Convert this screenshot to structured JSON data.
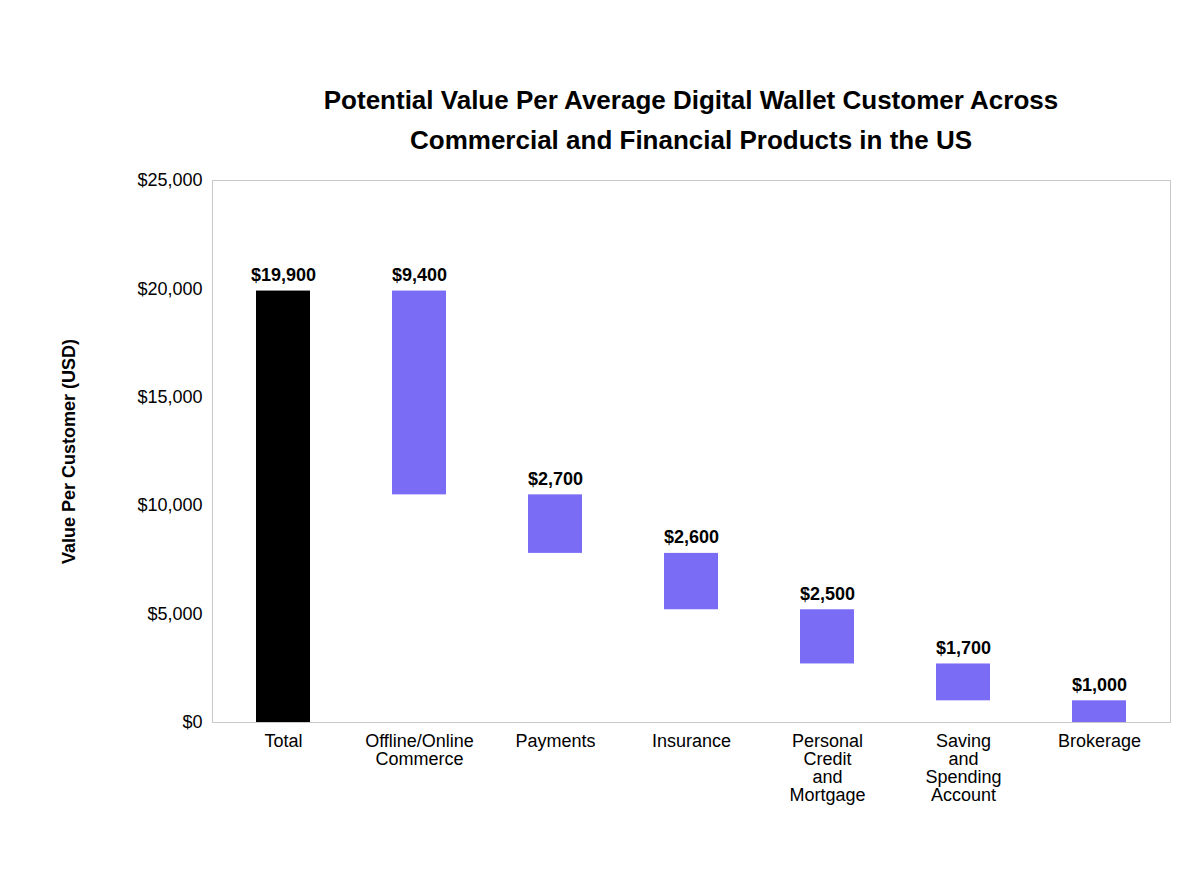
{
  "chart_data": {
    "type": "waterfall",
    "title": "Potential Value Per Average Digital Wallet Customer Across Commercial and Financial Products in the US",
    "y_label": "Value Per Customer (USD)",
    "categories": [
      "Total",
      "Offline/Online Commerce",
      "Payments",
      "Insurance",
      "Personal Credit and Mortgage",
      "Saving and Spending Account",
      "Brokerage"
    ],
    "values": [
      19900,
      9400,
      2700,
      2600,
      2500,
      1700,
      1000
    ],
    "value_labels": [
      "$19,900",
      "$9,400",
      "$2,700",
      "$2,600",
      "$2,500",
      "$1,700",
      "$1,000"
    ],
    "colors": [
      "#000000",
      "#7b6cf6",
      "#7b6cf6",
      "#7b6cf6",
      "#7b6cf6",
      "#7b6cf6",
      "#7b6cf6"
    ],
    "ylim": [
      0,
      25000
    ],
    "yticks": [
      {
        "value": 0,
        "label": "$0"
      },
      {
        "value": 5000,
        "label": "$5,000"
      },
      {
        "value": 10000,
        "label": "$10,000"
      },
      {
        "value": 15000,
        "label": "$15,000"
      },
      {
        "value": 20000,
        "label": "$20,000"
      },
      {
        "value": 25000,
        "label": "$25,000"
      }
    ],
    "grid": false,
    "data_labels": true
  }
}
